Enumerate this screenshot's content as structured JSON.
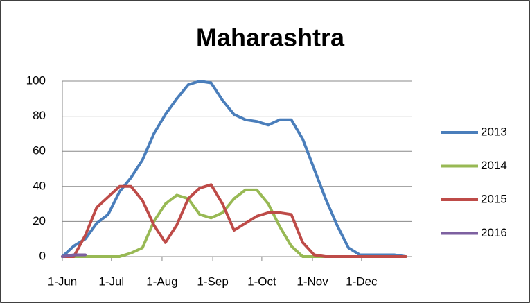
{
  "chart_data": {
    "type": "line",
    "title": "Maharashtra",
    "x": [
      "1-Jun",
      "8-Jun",
      "15-Jun",
      "22-Jun",
      "29-Jun",
      "6-Jul",
      "13-Jul",
      "20-Jul",
      "27-Jul",
      "3-Aug",
      "10-Aug",
      "17-Aug",
      "24-Aug",
      "31-Aug",
      "7-Sep",
      "14-Sep",
      "21-Sep",
      "28-Sep",
      "5-Oct",
      "12-Oct",
      "19-Oct",
      "26-Oct",
      "2-Nov",
      "9-Nov",
      "16-Nov",
      "23-Nov",
      "30-Nov",
      "7-Dec",
      "14-Dec",
      "21-Dec",
      "28-Dec"
    ],
    "series": [
      {
        "name": "2013",
        "color": "#4a7ebb",
        "values": [
          0,
          6,
          10,
          19,
          24,
          37,
          45,
          55,
          70,
          81,
          90,
          98,
          100,
          99,
          89,
          81,
          78,
          77,
          75,
          78,
          78,
          67,
          50,
          33,
          18,
          5,
          1,
          1,
          1,
          1,
          0
        ]
      },
      {
        "name": "2014",
        "color": "#98b954",
        "values": [
          0,
          0,
          0,
          0,
          0,
          0,
          2,
          5,
          20,
          30,
          35,
          33,
          24,
          22,
          25,
          33,
          38,
          38,
          30,
          17,
          6,
          0,
          0,
          0,
          0,
          0,
          0,
          0,
          0,
          0,
          0
        ]
      },
      {
        "name": "2015",
        "color": "#be4b48",
        "values": [
          0,
          0,
          12,
          28,
          34,
          40,
          40,
          32,
          18,
          8,
          18,
          33,
          39,
          41,
          30,
          15,
          19,
          23,
          25,
          25,
          24,
          8,
          1,
          0,
          0,
          0,
          0,
          0,
          0,
          0,
          0
        ]
      },
      {
        "name": "2016",
        "color": "#7d60a0",
        "values": [
          0,
          1,
          1,
          null,
          null,
          null,
          null,
          null,
          null,
          null,
          null,
          null,
          null,
          null,
          null,
          null,
          null,
          null,
          null,
          null,
          null,
          null,
          null,
          null,
          null,
          null,
          null,
          null,
          null,
          null,
          null
        ]
      }
    ],
    "xlim": [
      "1-Jun",
      "1-Jan"
    ],
    "xticks": [
      "1-Jun",
      "1-Jul",
      "1-Aug",
      "1-Sep",
      "1-Oct",
      "1-Nov",
      "1-Dec"
    ],
    "ylim": [
      0,
      100
    ],
    "yticks": [
      0,
      20,
      40,
      60,
      80,
      100
    ],
    "grid": true,
    "legend": "right"
  }
}
